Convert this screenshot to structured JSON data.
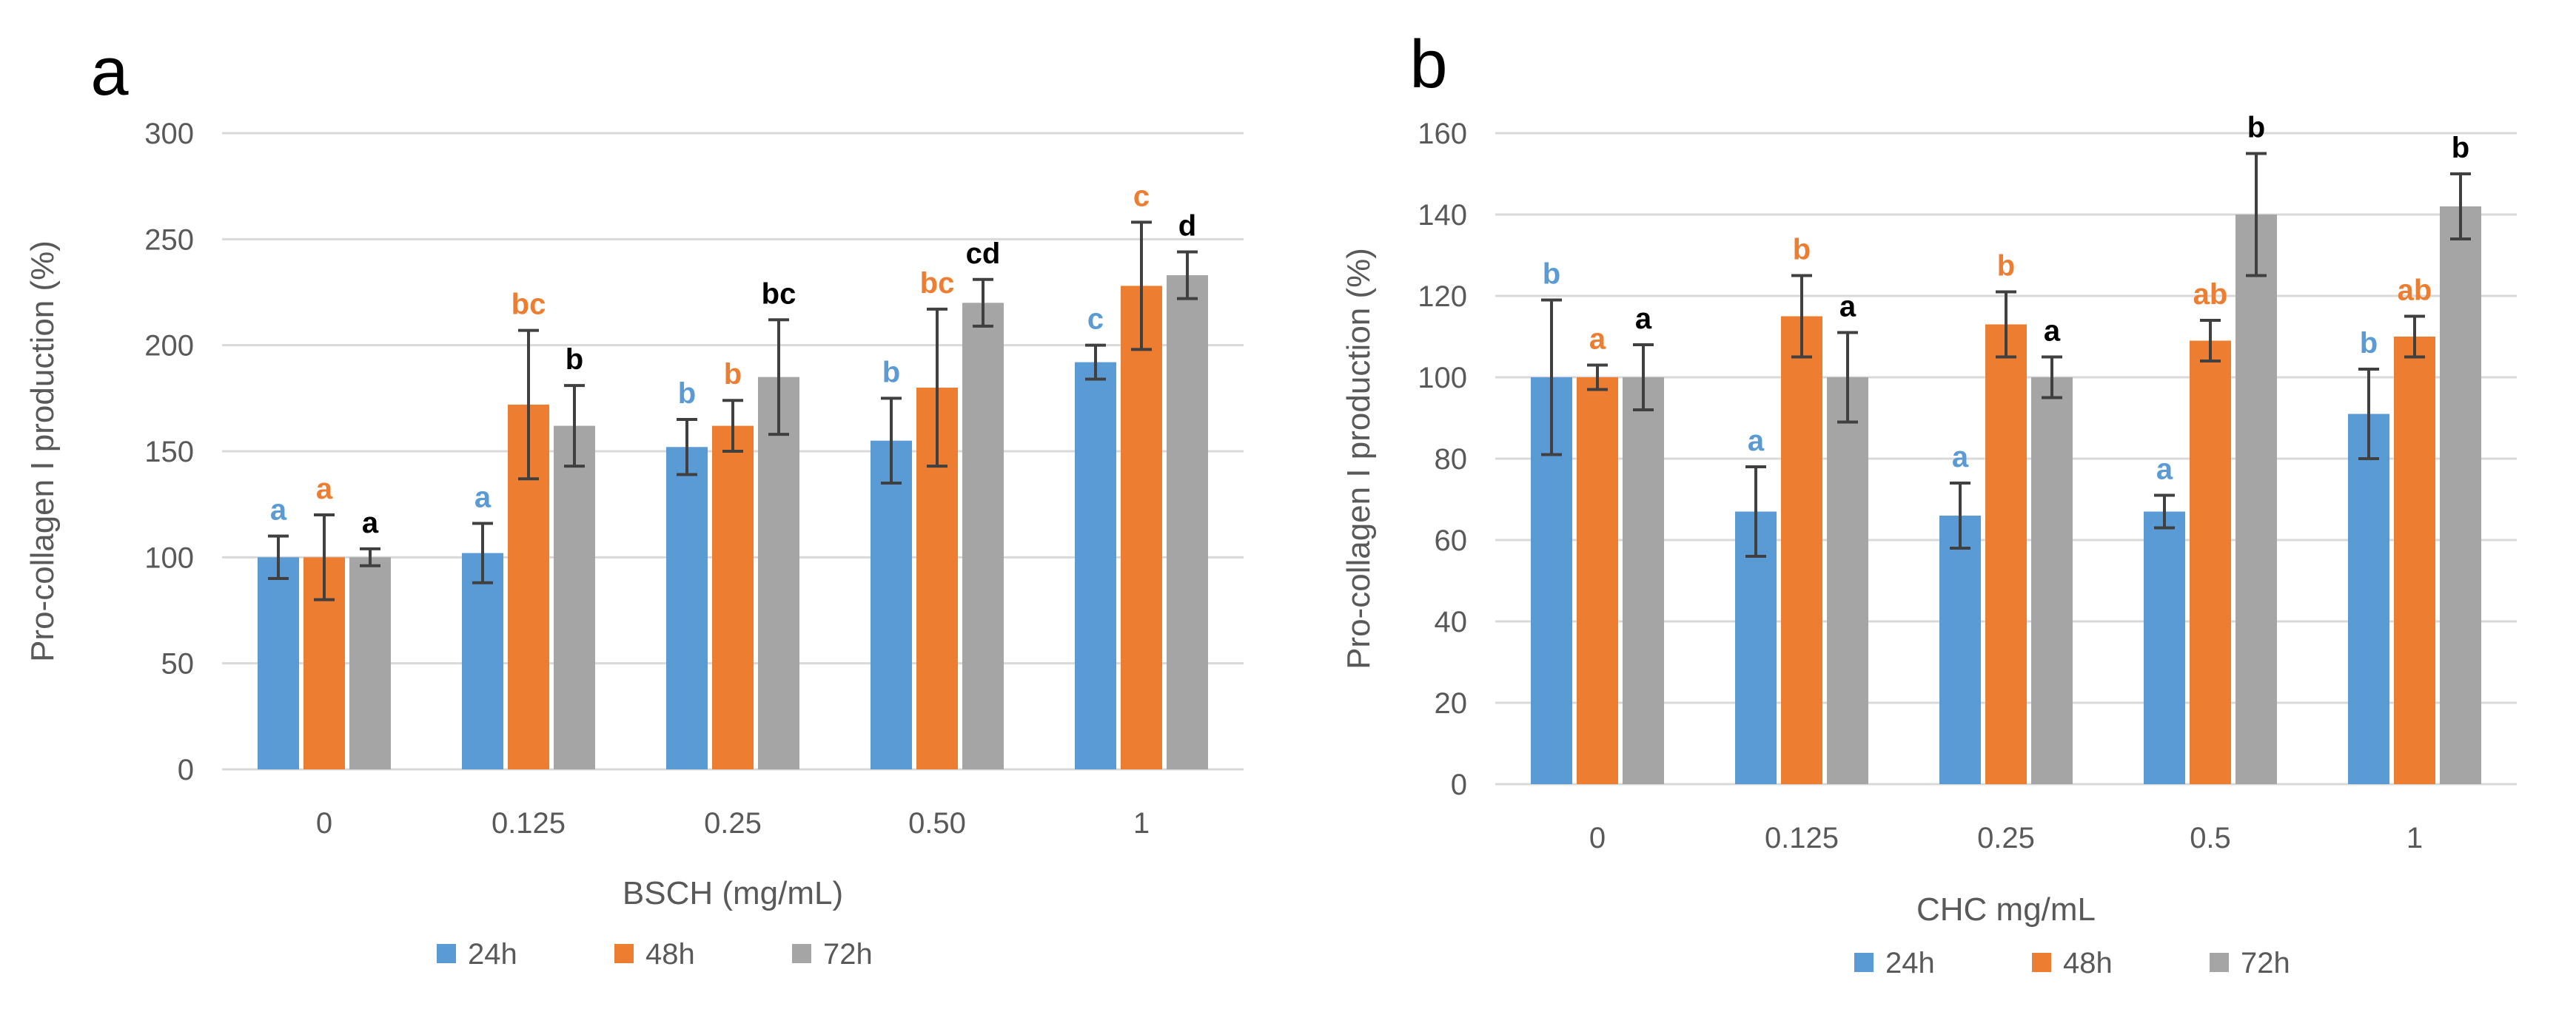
{
  "chart_data": [
    {
      "panel_label": "a",
      "type": "bar",
      "title": "",
      "xlabel": "BSCH (mg/mL)",
      "ylabel": "Pro-collagen I production (%)",
      "categories": [
        "0",
        "0.125",
        "0.25",
        "0.50",
        "1"
      ],
      "ylim": [
        0,
        300
      ],
      "yticks": [
        0,
        50,
        100,
        150,
        200,
        250,
        300
      ],
      "grid": true,
      "legend_position": "bottom",
      "series": [
        {
          "name": "24h",
          "color": "#5B9BD5",
          "values": [
            100,
            102,
            152,
            155,
            192
          ],
          "errors": [
            10,
            14,
            13,
            20,
            8
          ],
          "letters": [
            "a",
            "a",
            "b",
            "b",
            "c"
          ]
        },
        {
          "name": "48h",
          "color": "#ED7D31",
          "values": [
            100,
            172,
            162,
            180,
            228
          ],
          "errors": [
            20,
            35,
            12,
            37,
            30
          ],
          "letters": [
            "a",
            "bc",
            "b",
            "bc",
            "c"
          ]
        },
        {
          "name": "72h",
          "color": "#A5A5A5",
          "values": [
            100,
            162,
            185,
            220,
            233
          ],
          "errors": [
            4,
            19,
            27,
            11,
            11
          ],
          "letters": [
            "a",
            "b",
            "bc",
            "cd",
            "d"
          ]
        }
      ]
    },
    {
      "panel_label": "b",
      "type": "bar",
      "title": "",
      "xlabel": "CHC mg/mL",
      "ylabel": "Pro-collagen I production (%)",
      "categories": [
        "0",
        "0.125",
        "0.25",
        "0.5",
        "1"
      ],
      "ylim": [
        0,
        160
      ],
      "yticks": [
        0,
        20,
        40,
        60,
        80,
        100,
        120,
        140,
        160
      ],
      "grid": true,
      "legend_position": "bottom",
      "series": [
        {
          "name": "24h",
          "color": "#5B9BD5",
          "values": [
            100,
            67,
            66,
            67,
            91
          ],
          "errors": [
            19,
            11,
            8,
            4,
            11
          ],
          "letters": [
            "b",
            "a",
            "a",
            "a",
            "b"
          ]
        },
        {
          "name": "48h",
          "color": "#ED7D31",
          "values": [
            100,
            115,
            113,
            109,
            110
          ],
          "errors": [
            3,
            10,
            8,
            5,
            5
          ],
          "letters": [
            "a",
            "b",
            "b",
            "ab",
            "ab"
          ]
        },
        {
          "name": "72h",
          "color": "#A5A5A5",
          "values": [
            100,
            100,
            100,
            140,
            142
          ],
          "errors": [
            8,
            11,
            5,
            15,
            8
          ],
          "letters": [
            "a",
            "a",
            "a",
            "b",
            "b"
          ]
        }
      ]
    }
  ],
  "letter_colors": {
    "24h": "#5B9BD5",
    "48h": "#ED7D31",
    "72h": "#000000"
  }
}
